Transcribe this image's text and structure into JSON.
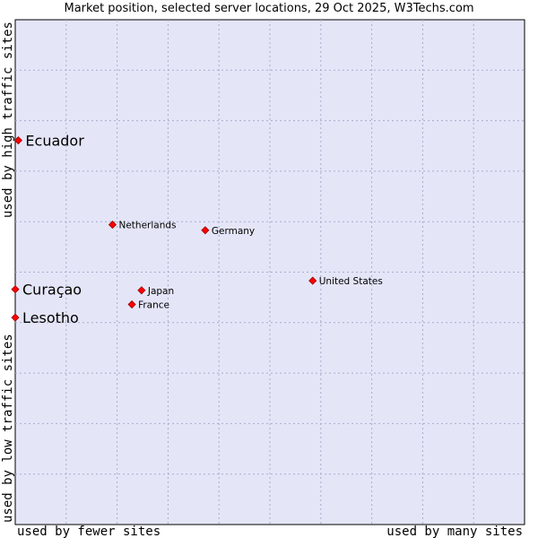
{
  "chart_data": {
    "type": "scatter",
    "title": "Market position, selected server locations, 29 Oct 2025, W3Techs.com",
    "xlabel_left": "used by fewer sites",
    "xlabel_right": "used by many sites",
    "ylabel_top": "used by high traffic sites",
    "ylabel_bottom": "used by low traffic sites",
    "xlim": [
      0,
      100
    ],
    "ylim": [
      0,
      100
    ],
    "grid": true,
    "colors": {
      "plot_background": "#e4e6f8",
      "grid": "#aaaacc",
      "marker": "#ff0000",
      "marker_edge": "#990000"
    },
    "points": [
      {
        "label": "Ecuador",
        "x": 0.6,
        "y": 76.1,
        "highlight": true
      },
      {
        "label": "Netherlands",
        "x": 19.1,
        "y": 59.4,
        "highlight": false
      },
      {
        "label": "Germany",
        "x": 37.3,
        "y": 58.3,
        "highlight": false
      },
      {
        "label": "United States",
        "x": 58.4,
        "y": 48.3,
        "highlight": false
      },
      {
        "label": "Curaçao",
        "x": 0.0,
        "y": 46.6,
        "highlight": true
      },
      {
        "label": "Japan",
        "x": 24.8,
        "y": 46.4,
        "highlight": false
      },
      {
        "label": "France",
        "x": 22.9,
        "y": 43.6,
        "highlight": false
      },
      {
        "label": "Lesotho",
        "x": 0.0,
        "y": 41.0,
        "highlight": true
      }
    ]
  }
}
